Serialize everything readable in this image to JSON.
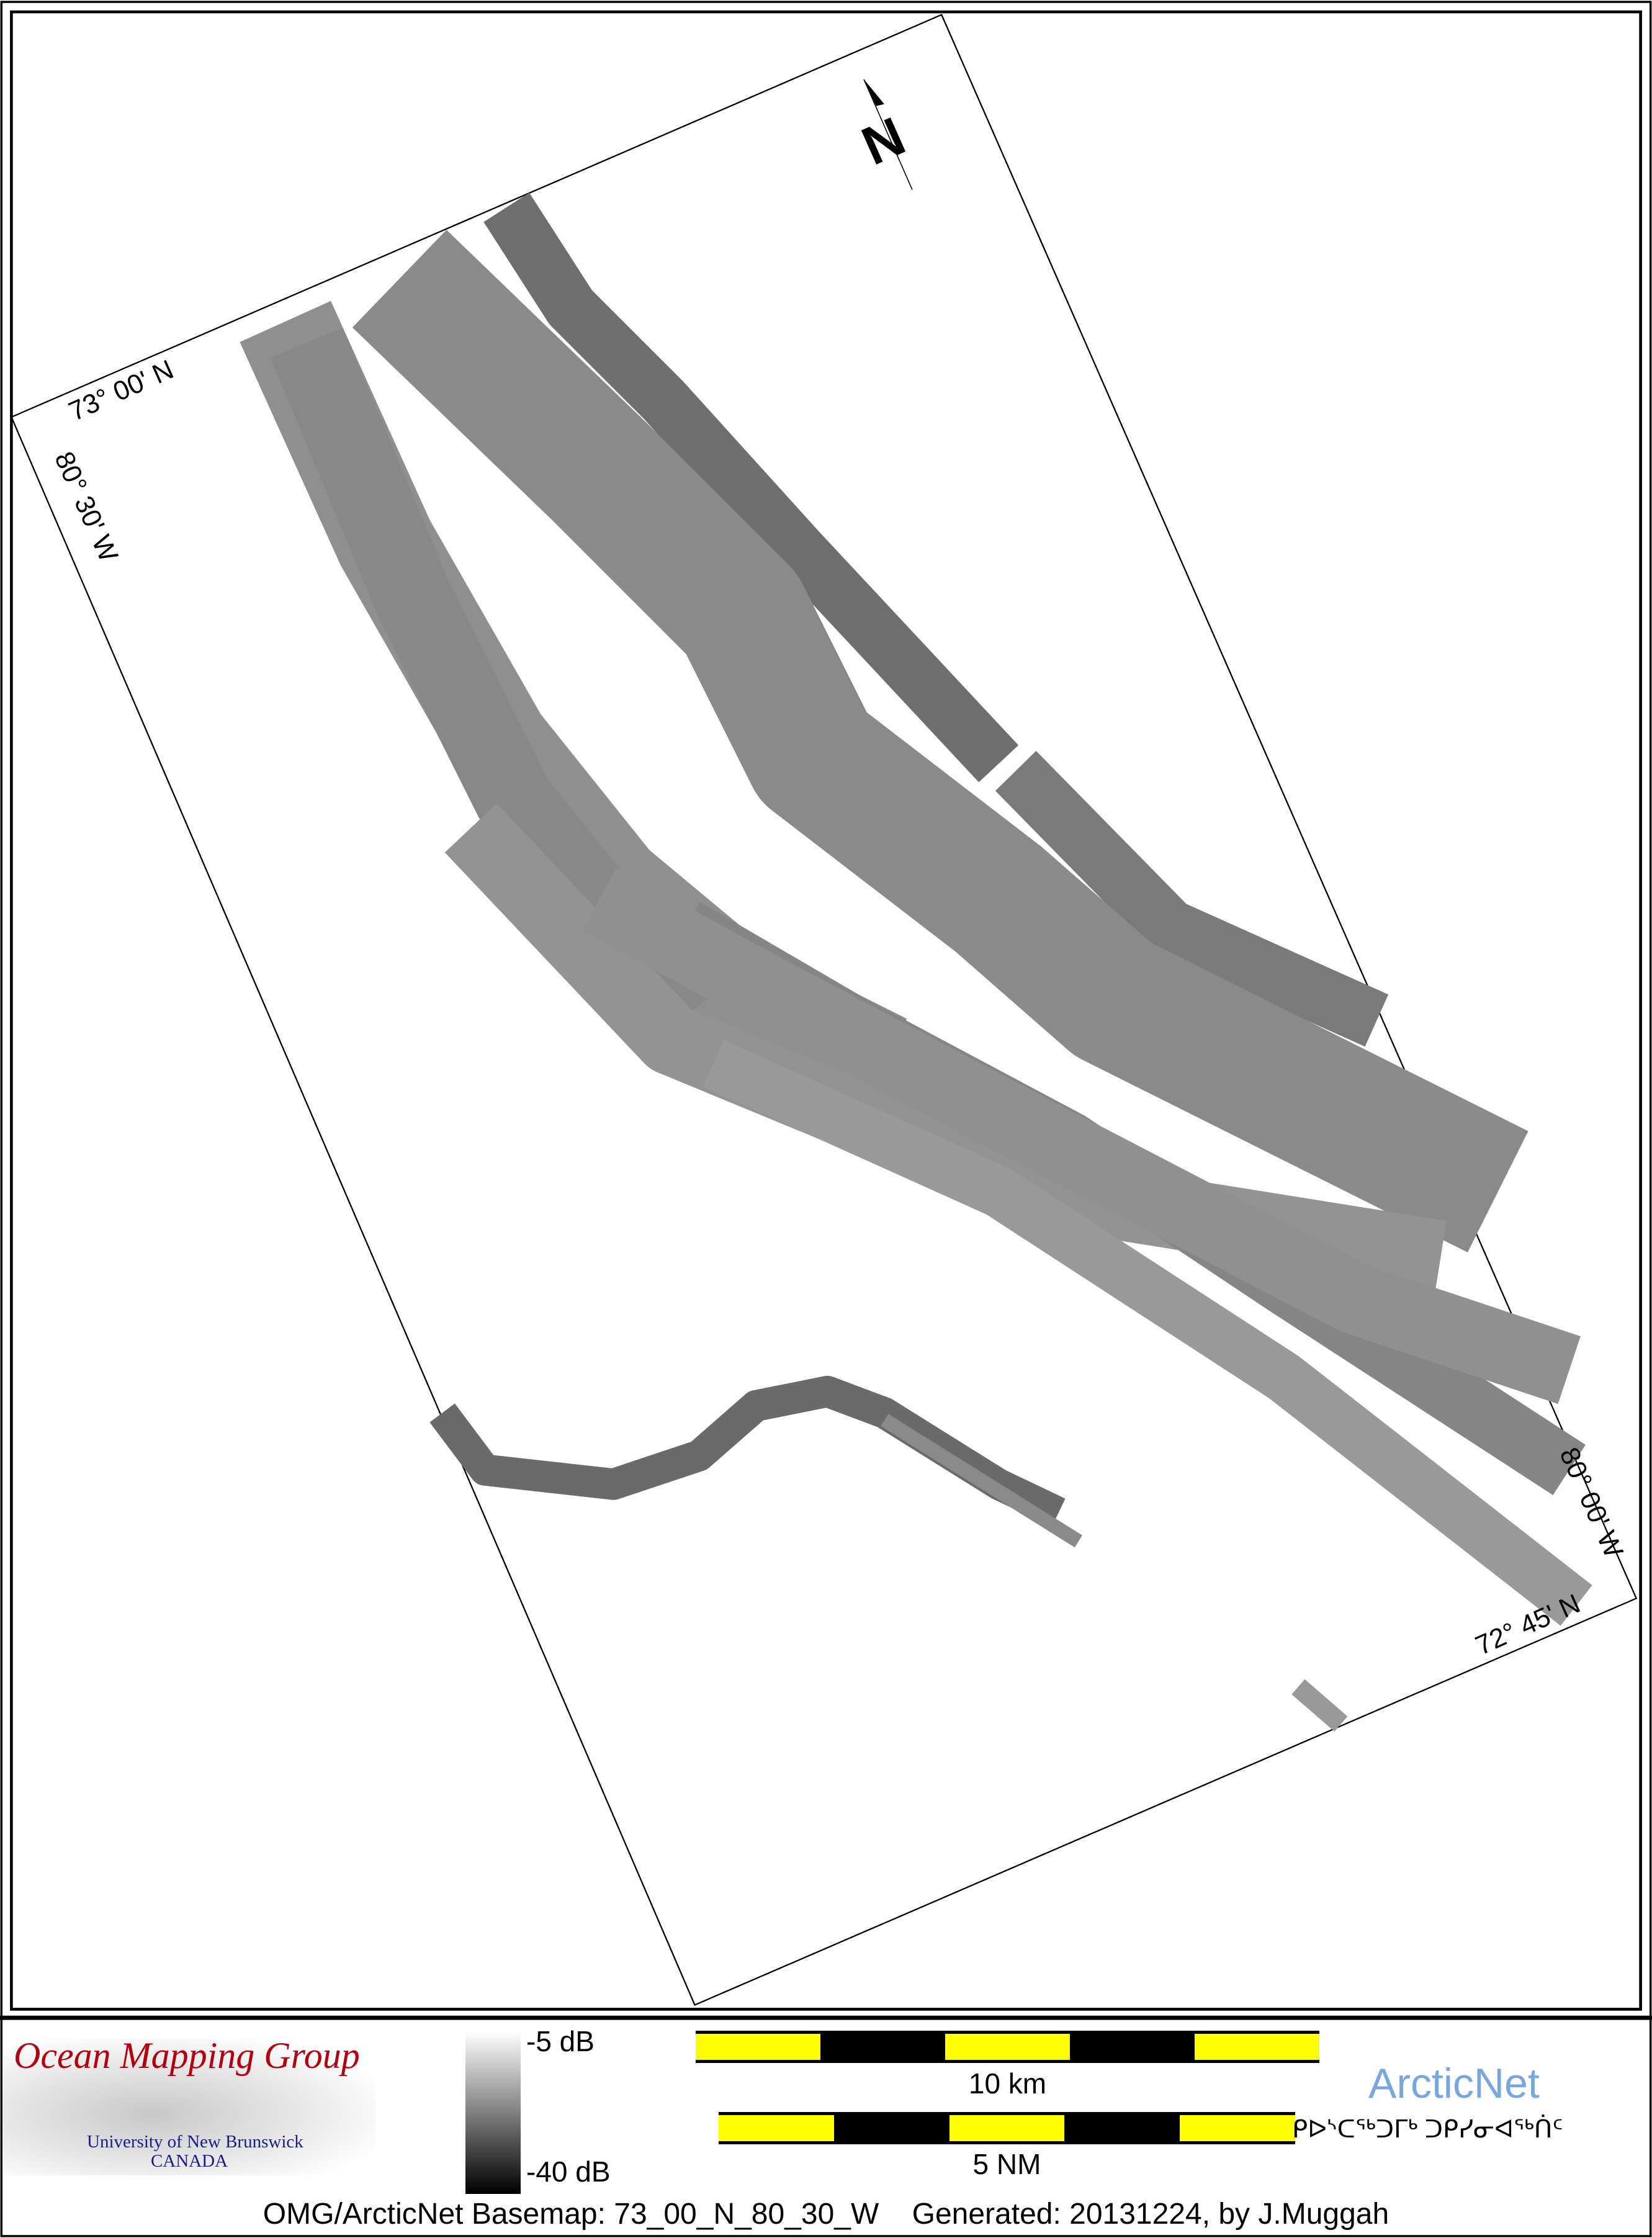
{
  "map": {
    "north_label": "N",
    "grid_labels": {
      "top_left_lat": "73° 00' N",
      "top_left_lon": "80° 30' W",
      "bottom_right_lon": "80° 00' W",
      "bottom_right_lat": "72° 45' N"
    },
    "swath_color": "#8c8c8c"
  },
  "legend": {
    "logo": {
      "title": "Ocean Mapping Group",
      "line1": "University of New Brunswick",
      "line2": "CANADA"
    },
    "colorbar": {
      "max_label": "-5 dB",
      "min_label": "-40 dB"
    },
    "scalebar_km": {
      "label": "10 km"
    },
    "scalebar_nm": {
      "label": "5 NM"
    },
    "partner": {
      "name": "ArcticNet",
      "syllabics": "ᑭᐅᔅᑕᖅᑐᒥᒃ ᑐᑭᓯᓂᐊᖅᑏᑦ",
      "color": "#7aa6de"
    },
    "footer": "OMG/ArcticNet Basemap: 73_00_N_80_30_W    Generated: 20131224, by J.Muggah"
  }
}
